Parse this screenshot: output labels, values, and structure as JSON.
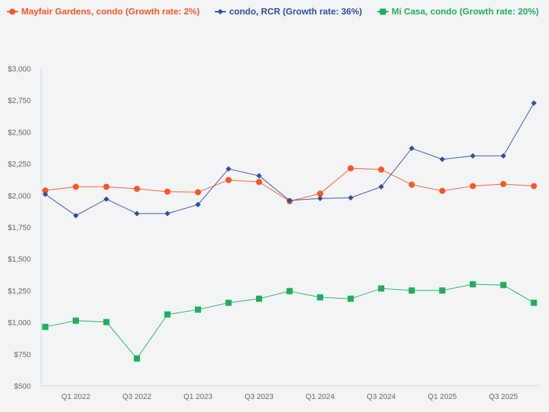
{
  "chart_data": {
    "type": "line",
    "title": "",
    "xlabel": "",
    "ylabel": "",
    "ylim": [
      500,
      3000
    ],
    "yticks": [
      "$500",
      "$750",
      "$1,000",
      "$1,250",
      "$1,500",
      "$1,750",
      "$2,000",
      "$2,250",
      "$2,500",
      "$2,750",
      "$3,000"
    ],
    "ytick_values": [
      500,
      750,
      1000,
      1250,
      1500,
      1750,
      2000,
      2250,
      2500,
      2750,
      3000
    ],
    "categories": [
      "Q4 2021",
      "Q1 2022",
      "Q2 2022",
      "Q3 2022",
      "Q4 2022",
      "Q1 2023",
      "Q2 2023",
      "Q3 2023",
      "Q4 2023",
      "Q1 2024",
      "Q2 2024",
      "Q3 2024",
      "Q4 2024",
      "Q1 2025",
      "Q2 2025",
      "Q3 2025",
      "Q4 2025"
    ],
    "xtick_labels": [
      "Q1 2022",
      "Q3 2022",
      "Q1 2023",
      "Q3 2023",
      "Q1 2024",
      "Q3 2024",
      "Q1 2025",
      "Q3 2025"
    ],
    "grid": false,
    "legend_placement": "top-left",
    "series": [
      {
        "name": "Mayfair Gardens, condo (Growth rate: 2%)",
        "color": "#fc5424",
        "marker": "circle",
        "values": [
          2040,
          2069,
          2069,
          2053,
          2031,
          2026,
          2123,
          2107,
          1956,
          2015,
          2215,
          2205,
          2086,
          2037,
          2075,
          2091,
          2075
        ]
      },
      {
        "name": "condo, RCR (Growth rate: 36%)",
        "color": "#2b4fa3",
        "marker": "diamond",
        "values": [
          2010,
          1842,
          1972,
          1858,
          1858,
          1929,
          2210,
          2156,
          1961,
          1977,
          1983,
          2069,
          2372,
          2286,
          2313,
          2313,
          2729
        ]
      },
      {
        "name": "Mi Casa, condo (Growth rate: 20%)",
        "color": "#21ad5a",
        "marker": "square",
        "values": [
          965,
          1014,
          1003,
          716,
          1063,
          1101,
          1155,
          1187,
          1247,
          1198,
          1187,
          1268,
          1252,
          1252,
          1301,
          1295,
          1155
        ]
      }
    ]
  }
}
